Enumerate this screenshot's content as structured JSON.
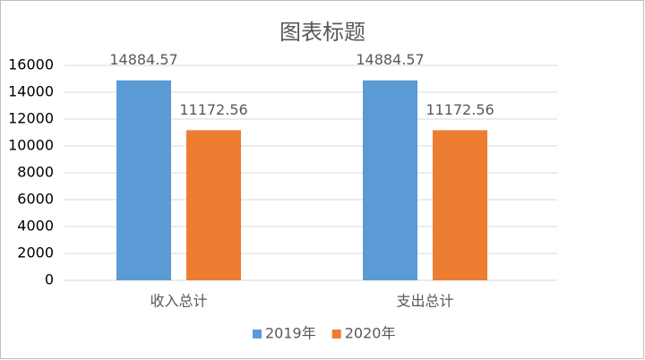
{
  "chart_data": {
    "type": "bar",
    "title": "图表标题",
    "categories": [
      "收入总计",
      "支出总计"
    ],
    "series": [
      {
        "name": "2019年",
        "color": "#5b9bd5",
        "values": [
          14884.57,
          14884.57
        ]
      },
      {
        "name": "2020年",
        "color": "#ed7d31",
        "values": [
          11172.56,
          11172.56
        ]
      }
    ],
    "ylim": [
      0,
      16000
    ],
    "yticks": [
      0,
      2000,
      4000,
      6000,
      8000,
      10000,
      12000,
      14000,
      16000
    ],
    "grid": true,
    "legend": "bottom",
    "data_labels": true
  }
}
